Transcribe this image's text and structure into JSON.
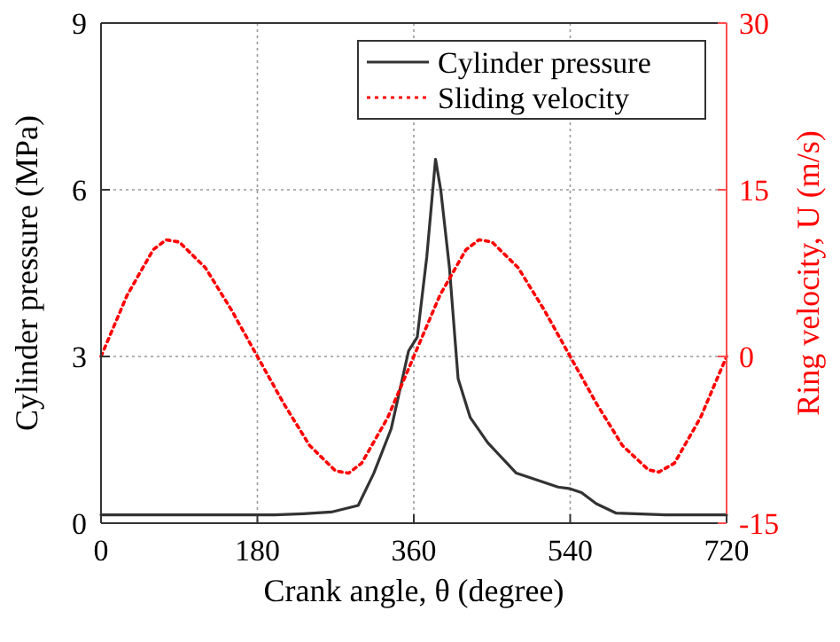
{
  "chart_data": {
    "type": "line",
    "xlabel": "Crank angle, θ (degree)",
    "ylabel": "Cylinder pressure (MPa)",
    "y2label": "Ring velocity, U (m/s)",
    "xlim": [
      0,
      720
    ],
    "xticks": [
      0,
      180,
      360,
      540,
      720
    ],
    "ylim": [
      0,
      9
    ],
    "yticks": [
      0,
      3,
      6,
      9
    ],
    "y2lim": [
      -15,
      30
    ],
    "y2ticks": [
      -15,
      0,
      15,
      30
    ],
    "grid": true,
    "legend": "top right",
    "series": [
      {
        "name": "Cylinder pressure",
        "color": "#333333",
        "line_style": "solid",
        "x": [
          0,
          100,
          200,
          233,
          265,
          296,
          314,
          334,
          354,
          364,
          375,
          385,
          391,
          401,
          411,
          425,
          445,
          478,
          526,
          540,
          553,
          570,
          593,
          650,
          720
        ],
        "values": [
          0.15,
          0.15,
          0.15,
          0.17,
          0.2,
          0.32,
          0.9,
          1.7,
          3.1,
          3.35,
          4.8,
          6.55,
          6.0,
          4.6,
          2.6,
          1.9,
          1.45,
          0.9,
          0.65,
          0.62,
          0.55,
          0.35,
          0.18,
          0.15,
          0.15
        ]
      },
      {
        "name": "Sliding velocity",
        "color": "#ff0000",
        "line_style": "dotted",
        "axis": "y2",
        "x": [
          0,
          30,
          60,
          75,
          90,
          120,
          150,
          180,
          210,
          240,
          270,
          285,
          300,
          330,
          360,
          390,
          420,
          435,
          450,
          480,
          510,
          540,
          570,
          600,
          630,
          642,
          660,
          690,
          720
        ],
        "values": [
          0,
          5.5,
          9.6,
          10.5,
          10.3,
          8,
          4.2,
          0,
          -4.2,
          -8,
          -10.3,
          -10.5,
          -9.6,
          -5.5,
          0,
          5.5,
          9.6,
          10.5,
          10.3,
          8,
          4.2,
          0,
          -4.2,
          -8,
          -10.2,
          -10.4,
          -9.6,
          -5.5,
          0
        ]
      }
    ]
  }
}
